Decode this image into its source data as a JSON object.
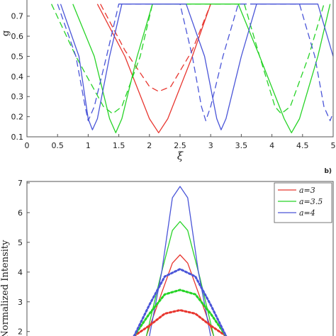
{
  "chart_data": [
    {
      "type": "line",
      "panel_label": "",
      "xlabel": "ξ",
      "ylabel": "g",
      "xlim": [
        0,
        5
      ],
      "ylim": [
        0.1,
        0.78
      ],
      "xticks": [
        "0",
        "0.5",
        "1",
        "1.5",
        "2",
        "2.5",
        "3",
        "3.5",
        "4",
        "4.5",
        "5"
      ],
      "yticks": [
        "0.1",
        "0.2",
        "0.3",
        "0.4",
        "0.5",
        "0.6",
        "0.7"
      ],
      "grid": false,
      "series": [
        {
          "color": "#e8362f",
          "style": "solid",
          "points": [
            [
              1.15,
              0.76
            ],
            [
              1.6,
              0.5
            ],
            [
              2.0,
              0.19
            ],
            [
              2.15,
              0.12
            ],
            [
              2.3,
              0.19
            ],
            [
              2.7,
              0.5
            ],
            [
              3.0,
              0.76
            ]
          ]
        },
        {
          "color": "#e8362f",
          "style": "dashed",
          "points": [
            [
              1.2,
              0.76
            ],
            [
              1.6,
              0.53
            ],
            [
              2.0,
              0.35
            ],
            [
              2.15,
              0.325
            ],
            [
              2.35,
              0.35
            ],
            [
              2.7,
              0.53
            ],
            [
              3.0,
              0.76
            ]
          ]
        },
        {
          "color": "#26d326",
          "style": "solid",
          "points": [
            [
              0.75,
              0.76
            ],
            [
              1.1,
              0.5
            ],
            [
              1.35,
              0.19
            ],
            [
              1.45,
              0.12
            ],
            [
              1.55,
              0.19
            ],
            [
              1.8,
              0.5
            ],
            [
              2.05,
              0.76
            ],
            [
              3.45,
              0.76
            ],
            [
              3.8,
              0.5
            ],
            [
              4.2,
              0.19
            ],
            [
              4.32,
              0.12
            ],
            [
              4.45,
              0.19
            ],
            [
              4.75,
              0.5
            ],
            [
              4.95,
              0.76
            ]
          ]
        },
        {
          "color": "#26d326",
          "style": "dashed",
          "points": [
            [
              0.4,
              0.76
            ],
            [
              0.8,
              0.5
            ],
            [
              1.25,
              0.25
            ],
            [
              1.4,
              0.215
            ],
            [
              1.55,
              0.25
            ],
            [
              1.85,
              0.5
            ],
            [
              2.05,
              0.76
            ],
            [
              3.55,
              0.76
            ],
            [
              3.8,
              0.5
            ],
            [
              4.05,
              0.25
            ],
            [
              4.15,
              0.215
            ],
            [
              4.3,
              0.25
            ],
            [
              4.6,
              0.5
            ],
            [
              4.85,
              0.76
            ]
          ]
        },
        {
          "color": "#4a55d8",
          "style": "solid",
          "points": [
            [
              0.55,
              0.76
            ],
            [
              0.85,
              0.5
            ],
            [
              1.0,
              0.19
            ],
            [
              1.07,
              0.135
            ],
            [
              1.15,
              0.19
            ],
            [
              1.35,
              0.5
            ],
            [
              1.55,
              0.76
            ],
            [
              2.6,
              0.76
            ],
            [
              2.9,
              0.5
            ],
            [
              3.1,
              0.19
            ],
            [
              3.17,
              0.135
            ],
            [
              3.25,
              0.19
            ],
            [
              3.5,
              0.5
            ],
            [
              3.75,
              0.76
            ],
            [
              4.75,
              0.76
            ],
            [
              5.0,
              0.5
            ]
          ]
        },
        {
          "color": "#4a55d8",
          "style": "dashed",
          "points": [
            [
              0.5,
              0.76
            ],
            [
              0.8,
              0.5
            ],
            [
              0.95,
              0.25
            ],
            [
              1.0,
              0.18
            ],
            [
              1.1,
              0.25
            ],
            [
              1.3,
              0.5
            ],
            [
              1.5,
              0.76
            ],
            [
              2.5,
              0.76
            ],
            [
              2.7,
              0.5
            ],
            [
              2.85,
              0.25
            ],
            [
              2.92,
              0.18
            ],
            [
              3.0,
              0.25
            ],
            [
              3.2,
              0.5
            ],
            [
              3.45,
              0.76
            ],
            [
              4.45,
              0.76
            ],
            [
              4.7,
              0.5
            ],
            [
              4.85,
              0.25
            ],
            [
              4.95,
              0.18
            ],
            [
              5.0,
              0.22
            ]
          ]
        }
      ]
    },
    {
      "type": "line",
      "panel_label": "b)",
      "xlabel": "",
      "ylabel": "Normalized Intensity",
      "xlim": [
        -1,
        1
      ],
      "ylim": [
        1.85,
        7.05
      ],
      "yticks": [
        "2",
        "3",
        "4",
        "5",
        "6",
        "7"
      ],
      "grid": false,
      "legend_position": "top-right",
      "legend": [
        "a=3",
        "a=3.5",
        "a=4"
      ],
      "series": [
        {
          "name": "a=3",
          "color": "#e8362f",
          "style": "solid",
          "points": [
            [
              -0.22,
              1.85
            ],
            [
              -0.12,
              3.3
            ],
            [
              -0.05,
              4.3
            ],
            [
              0.0,
              4.58
            ],
            [
              0.05,
              4.3
            ],
            [
              0.12,
              3.3
            ],
            [
              0.22,
              1.85
            ]
          ]
        },
        {
          "name": "a=3.5",
          "color": "#26d326",
          "style": "solid",
          "points": [
            [
              -0.22,
              1.85
            ],
            [
              -0.13,
              3.8
            ],
            [
              -0.05,
              5.4
            ],
            [
              0.0,
              5.7
            ],
            [
              0.05,
              5.4
            ],
            [
              0.13,
              3.8
            ],
            [
              0.22,
              1.85
            ]
          ]
        },
        {
          "name": "a=4",
          "color": "#4a55d8",
          "style": "solid",
          "points": [
            [
              -0.2,
              1.85
            ],
            [
              -0.12,
              4.0
            ],
            [
              -0.05,
              6.5
            ],
            [
              0.0,
              6.88
            ],
            [
              0.05,
              6.5
            ],
            [
              0.12,
              4.0
            ],
            [
              0.2,
              1.85
            ]
          ]
        },
        {
          "color": "#e8362f",
          "style": "dotted",
          "points": [
            [
              -0.3,
              1.85
            ],
            [
              -0.2,
              2.2
            ],
            [
              -0.1,
              2.6
            ],
            [
              0.0,
              2.72
            ],
            [
              0.1,
              2.6
            ],
            [
              0.2,
              2.2
            ],
            [
              0.3,
              1.85
            ]
          ]
        },
        {
          "color": "#26d326",
          "style": "dotted",
          "points": [
            [
              -0.3,
              1.85
            ],
            [
              -0.2,
              2.6
            ],
            [
              -0.1,
              3.25
            ],
            [
              0.0,
              3.4
            ],
            [
              0.1,
              3.25
            ],
            [
              0.2,
              2.6
            ],
            [
              0.3,
              1.85
            ]
          ]
        },
        {
          "color": "#4a55d8",
          "style": "dotted",
          "points": [
            [
              -0.3,
              1.85
            ],
            [
              -0.2,
              2.9
            ],
            [
              -0.1,
              3.85
            ],
            [
              0.0,
              4.1
            ],
            [
              0.1,
              3.85
            ],
            [
              0.2,
              2.9
            ],
            [
              0.3,
              1.85
            ]
          ]
        }
      ]
    }
  ]
}
